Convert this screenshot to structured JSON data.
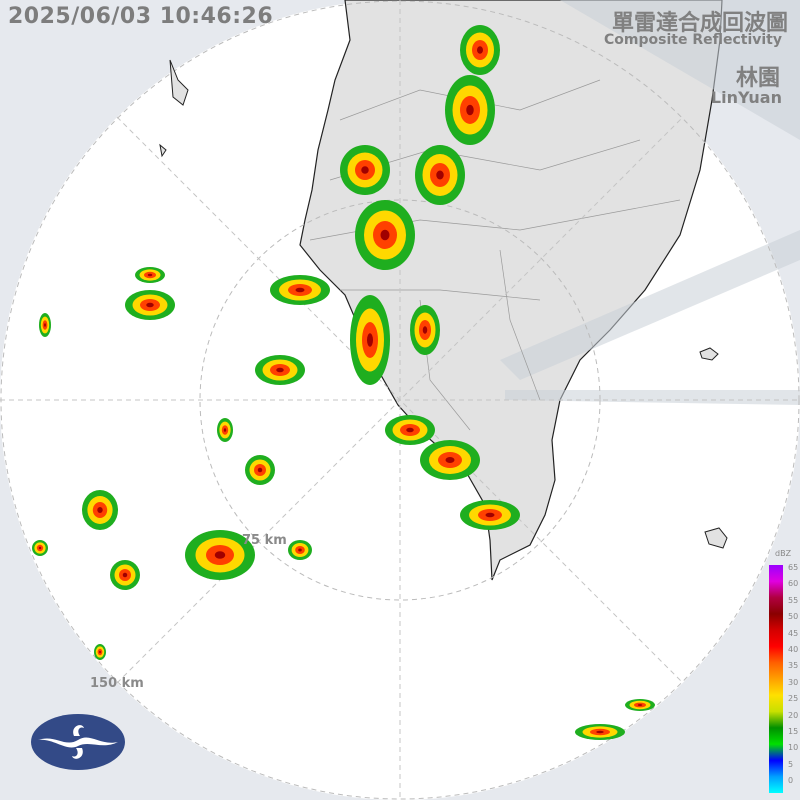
{
  "timestamp": "2025/06/03 10:46:26",
  "product": {
    "title_zh": "單雷達合成回波圖",
    "title_en": "Composite Reflectivity"
  },
  "station": {
    "name_zh": "林園",
    "name_en": "LinYuan"
  },
  "range_rings": [
    "75 km",
    "150 km"
  ],
  "colorbar": {
    "unit": "dBZ",
    "labels": [
      "65",
      "60",
      "55",
      "50",
      "45",
      "40",
      "35",
      "30",
      "25",
      "20",
      "15",
      "10",
      "5",
      "0"
    ],
    "colors": [
      "#9b00ff",
      "#e000e0",
      "#b00040",
      "#8a0000",
      "#d40000",
      "#ff0000",
      "#ff6000",
      "#ffa000",
      "#ffe000",
      "#c8e000",
      "#009000",
      "#00e000",
      "#0000ff",
      "#00a0ff",
      "#00ffff"
    ]
  },
  "logo": "cwa-logo",
  "colors": {
    "background": "#e6e9ee",
    "radar_area": "#ffffff",
    "land": "#e2e2e2",
    "blocked": "#d4d8de"
  }
}
